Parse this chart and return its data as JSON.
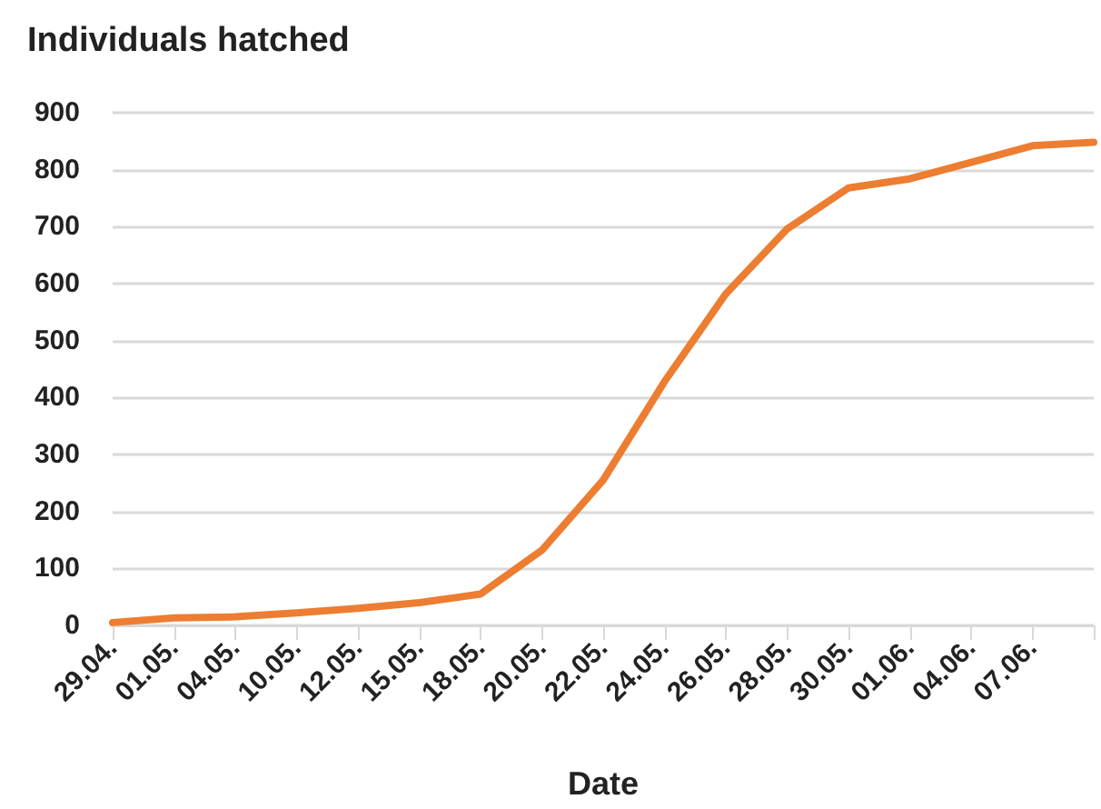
{
  "chart_data": {
    "type": "line",
    "title": "Individuals hatched",
    "xlabel": "Date",
    "categories": [
      "29.04.",
      "01.05.",
      "04.05.",
      "10.05.",
      "12.05.",
      "15.05.",
      "18.05.",
      "20.05.",
      "22.05.",
      "24.05.",
      "26.05.",
      "28.05.",
      "30.05.",
      "01.06.",
      "04.06.",
      "07.06.",
      null
    ],
    "series": [
      {
        "color": "#ed7d31",
        "values": [
          5,
          13,
          15,
          22,
          30,
          40,
          55,
          132,
          255,
          428,
          582,
          696,
          768,
          784,
          813,
          842,
          848
        ]
      }
    ],
    "ylim": [
      0,
      900
    ],
    "yticks": [
      0,
      100,
      200,
      300,
      400,
      500,
      600,
      700,
      800,
      900
    ],
    "grid": "y",
    "marker": "none",
    "line_style": "solid"
  }
}
